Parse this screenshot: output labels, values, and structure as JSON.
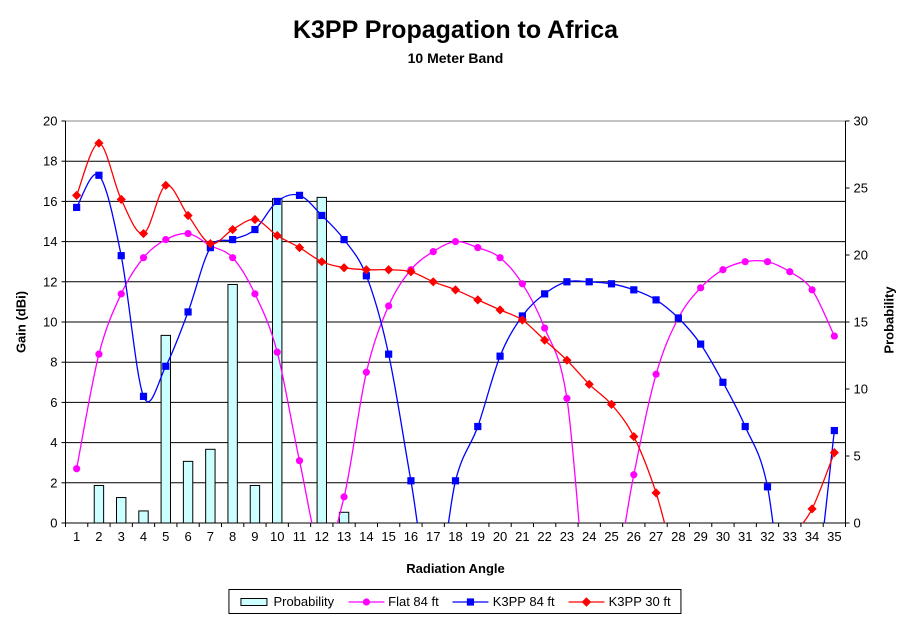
{
  "chart": {
    "title": "K3PP Propagation to Africa",
    "subtitle": "10 Meter Band"
  },
  "chart_data": {
    "type": "combo-bar-line",
    "x": [
      1,
      2,
      3,
      4,
      5,
      6,
      7,
      8,
      9,
      10,
      11,
      12,
      13,
      14,
      15,
      16,
      17,
      18,
      19,
      20,
      21,
      22,
      23,
      24,
      25,
      26,
      27,
      28,
      29,
      30,
      31,
      32,
      33,
      34,
      35
    ],
    "x_axis": {
      "title": "Radiation Angle"
    },
    "left_axis": {
      "title": "Gain (dBi)",
      "min": 0,
      "max": 20,
      "step": 2
    },
    "right_axis": {
      "title": "Probability",
      "min": 0,
      "max": 30,
      "step": 5
    },
    "grid": "horizontal-only",
    "grid_color": "#000000",
    "plot_top_border_color": "#888888",
    "legend_position": "bottom",
    "series": [
      {
        "name": "Probability",
        "type": "bar",
        "axis": "right",
        "color": "#CCFFFF",
        "border_color": "#000000",
        "values": [
          null,
          2.8,
          1.9,
          0.9,
          14,
          4.6,
          5.5,
          17.8,
          2.8,
          24.2,
          null,
          24.3,
          0.8,
          null,
          null,
          null,
          null,
          null,
          null,
          null,
          null,
          null,
          null,
          null,
          null,
          null,
          null,
          null,
          null,
          null,
          null,
          null,
          null,
          null,
          null
        ]
      },
      {
        "name": "Flat 84 ft",
        "type": "line",
        "axis": "left",
        "color": "#FF00FF",
        "marker": "circle",
        "values": [
          2.7,
          8.4,
          11.4,
          13.2,
          14.1,
          14.4,
          13.8,
          13.2,
          11.4,
          8.5,
          3.1,
          -1.5,
          1.3,
          7.5,
          10.8,
          12.6,
          13.5,
          14.0,
          13.7,
          13.2,
          11.9,
          9.7,
          6.2,
          -4.5,
          -3.5,
          2.4,
          7.4,
          10.2,
          11.7,
          12.6,
          13.0,
          13.0,
          12.5,
          11.6,
          9.3
        ]
      },
      {
        "name": "K3PP 84 ft",
        "type": "line",
        "axis": "left",
        "color": "#0000FF",
        "marker": "square",
        "values": [
          15.7,
          17.3,
          13.3,
          6.3,
          7.8,
          10.5,
          13.7,
          14.1,
          14.6,
          16.0,
          16.3,
          15.3,
          14.1,
          12.3,
          8.4,
          2.1,
          -4,
          2.1,
          4.8,
          8.3,
          10.3,
          11.4,
          12.0,
          12.0,
          11.9,
          11.6,
          11.1,
          10.2,
          8.9,
          7.0,
          4.8,
          1.8,
          -6,
          -4.5,
          4.6
        ]
      },
      {
        "name": "K3PP 30 ft",
        "type": "line",
        "axis": "left",
        "color": "#FF0000",
        "marker": "diamond",
        "values": [
          16.3,
          18.9,
          16.1,
          14.4,
          16.8,
          15.3,
          13.9,
          14.6,
          15.1,
          14.3,
          13.7,
          13.0,
          12.7,
          12.6,
          12.6,
          12.5,
          12.0,
          11.6,
          11.1,
          10.6,
          10.1,
          9.1,
          8.1,
          6.9,
          5.9,
          4.3,
          1.5,
          -2.5,
          -5,
          -6,
          -6,
          -4,
          -1,
          0.7,
          3.5
        ]
      }
    ],
    "note": "Negative line values are off-chart: the smoothed curve dips below the 0 axis and is clipped; no marker is drawn there. Null bar values mean no bar drawn."
  }
}
